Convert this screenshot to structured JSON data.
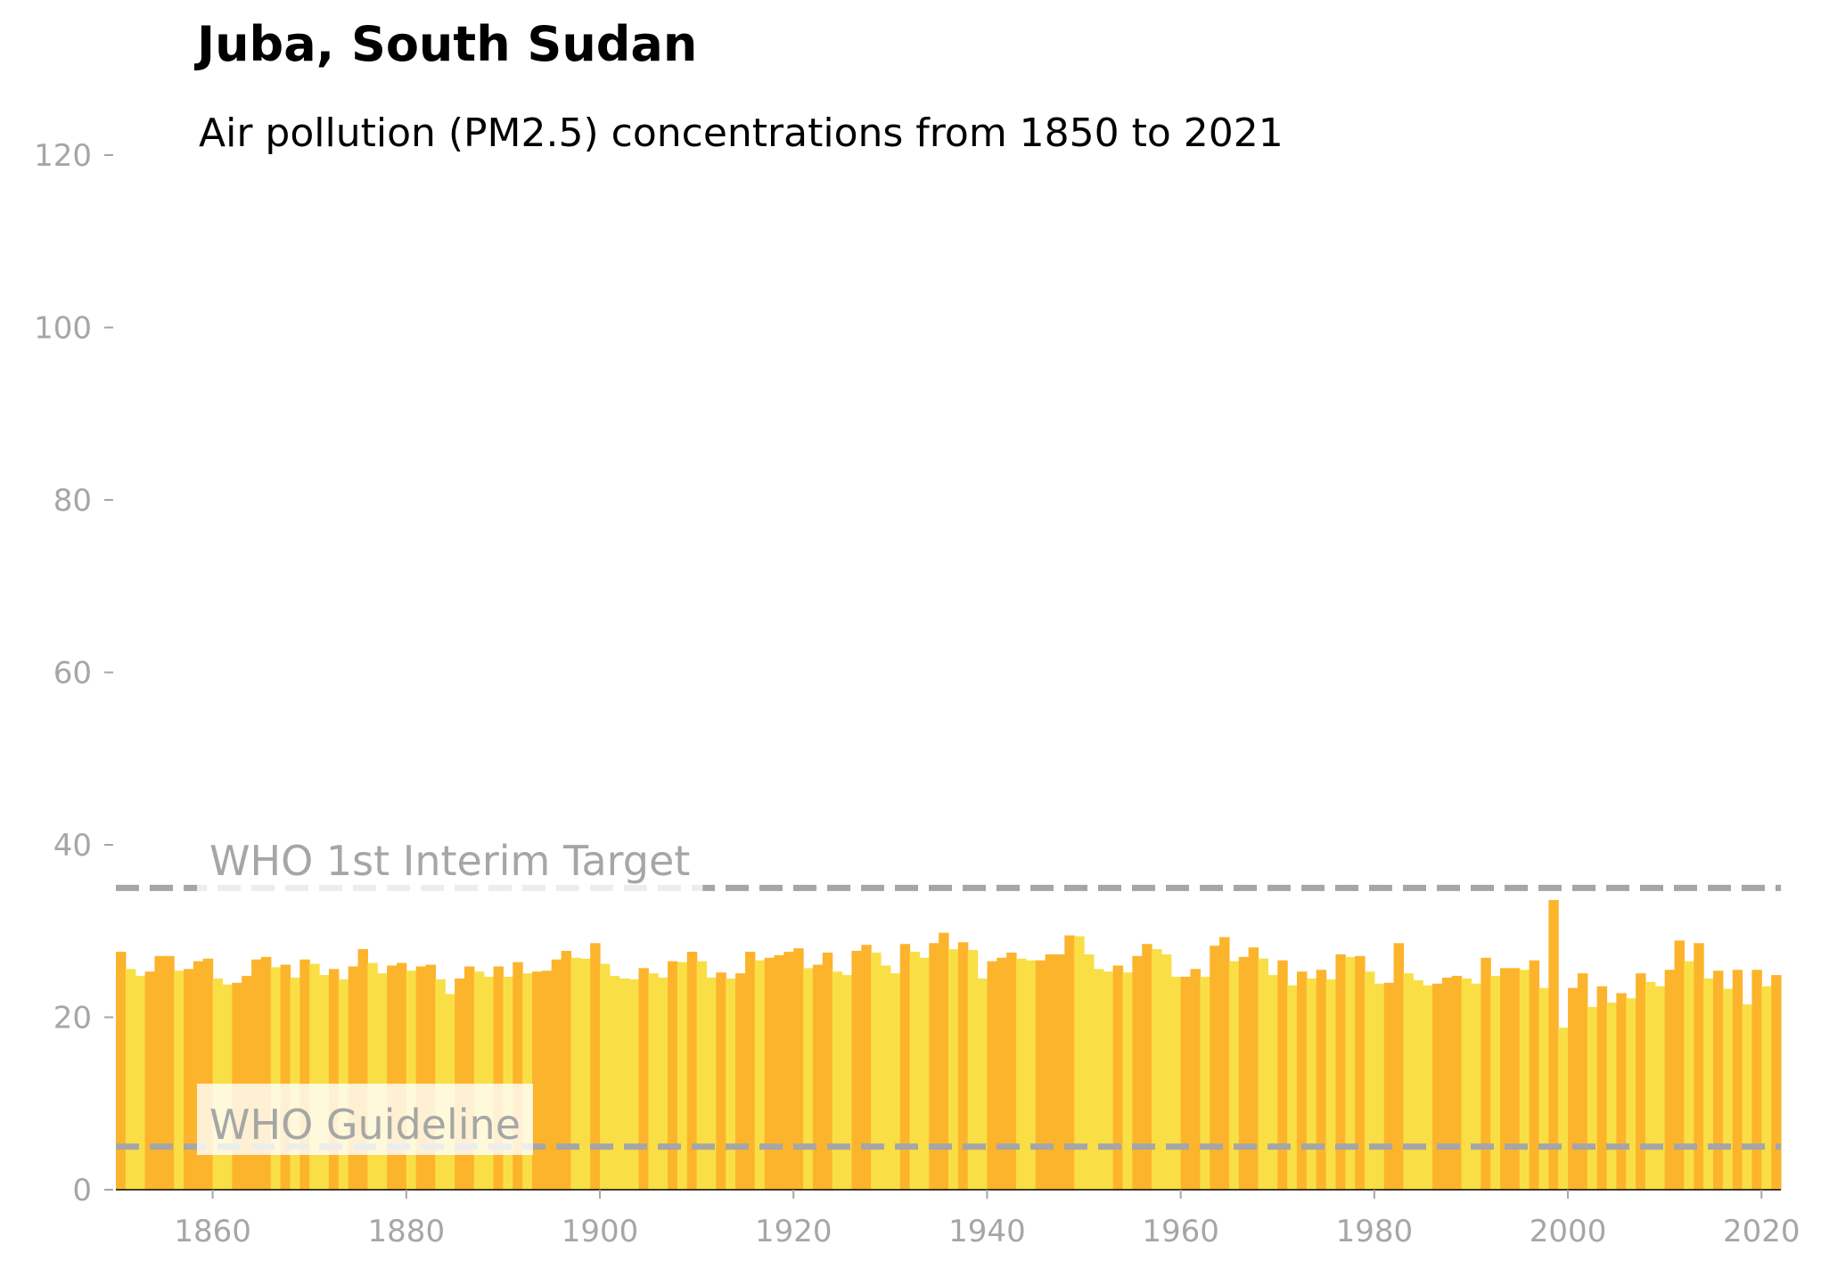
{
  "chart_data": {
    "type": "bar",
    "title": "Juba, South Sudan",
    "subtitle": "Air pollution (PM2.5) concentrations from 1850 to 2021",
    "xlabel": "",
    "ylabel": "",
    "xlim": [
      1850,
      2022
    ],
    "ylim": [
      0,
      120
    ],
    "x_ticks": [
      1860,
      1880,
      1900,
      1920,
      1940,
      1960,
      1980,
      2000,
      2020
    ],
    "y_ticks": [
      0,
      20,
      40,
      60,
      80,
      100,
      120
    ],
    "grid": false,
    "legend": "none",
    "colors": {
      "high": "#fcb42c",
      "low": "#f9df45",
      "reference_line": "#a6a6a6"
    },
    "reference_lines": [
      {
        "label": "WHO 1st Interim Target",
        "value": 35
      },
      {
        "label": "WHO Guideline",
        "value": 5
      }
    ],
    "years": [
      1850,
      1851,
      1852,
      1853,
      1854,
      1855,
      1856,
      1857,
      1858,
      1859,
      1860,
      1861,
      1862,
      1863,
      1864,
      1865,
      1866,
      1867,
      1868,
      1869,
      1870,
      1871,
      1872,
      1873,
      1874,
      1875,
      1876,
      1877,
      1878,
      1879,
      1880,
      1881,
      1882,
      1883,
      1884,
      1885,
      1886,
      1887,
      1888,
      1889,
      1890,
      1891,
      1892,
      1893,
      1894,
      1895,
      1896,
      1897,
      1898,
      1899,
      1900,
      1901,
      1902,
      1903,
      1904,
      1905,
      1906,
      1907,
      1908,
      1909,
      1910,
      1911,
      1912,
      1913,
      1914,
      1915,
      1916,
      1917,
      1918,
      1919,
      1920,
      1921,
      1922,
      1923,
      1924,
      1925,
      1926,
      1927,
      1928,
      1929,
      1930,
      1931,
      1932,
      1933,
      1934,
      1935,
      1936,
      1937,
      1938,
      1939,
      1940,
      1941,
      1942,
      1943,
      1944,
      1945,
      1946,
      1947,
      1948,
      1949,
      1950,
      1951,
      1952,
      1953,
      1954,
      1955,
      1956,
      1957,
      1958,
      1959,
      1960,
      1961,
      1962,
      1963,
      1964,
      1965,
      1966,
      1967,
      1968,
      1969,
      1970,
      1971,
      1972,
      1973,
      1974,
      1975,
      1976,
      1977,
      1978,
      1979,
      1980,
      1981,
      1982,
      1983,
      1984,
      1985,
      1986,
      1987,
      1988,
      1989,
      1990,
      1991,
      1992,
      1993,
      1994,
      1995,
      1996,
      1997,
      1998,
      1999,
      2000,
      2001,
      2002,
      2003,
      2004,
      2005,
      2006,
      2007,
      2008,
      2009,
      2010,
      2011,
      2012,
      2013,
      2014,
      2015,
      2016,
      2017,
      2018,
      2019,
      2020,
      2021
    ],
    "values": [
      27.6,
      25.6,
      24.8,
      25.3,
      27.1,
      27.1,
      25.4,
      25.6,
      26.5,
      26.8,
      24.5,
      23.8,
      24.0,
      24.8,
      26.7,
      27.0,
      25.8,
      26.1,
      24.6,
      26.7,
      26.2,
      24.9,
      25.6,
      24.4,
      25.9,
      27.9,
      26.3,
      25.1,
      26.0,
      26.3,
      25.4,
      25.9,
      26.1,
      24.4,
      22.7,
      24.5,
      25.9,
      25.3,
      24.7,
      25.9,
      24.7,
      26.4,
      25.1,
      25.3,
      25.4,
      26.7,
      27.7,
      26.9,
      26.8,
      28.6,
      26.2,
      24.8,
      24.5,
      24.4,
      25.7,
      25.1,
      24.6,
      26.5,
      26.4,
      27.6,
      26.5,
      24.6,
      25.2,
      24.5,
      25.1,
      27.6,
      26.6,
      26.9,
      27.2,
      27.6,
      28.0,
      25.7,
      26.1,
      27.5,
      25.3,
      24.9,
      27.7,
      28.4,
      27.5,
      26.0,
      25.1,
      28.5,
      27.6,
      26.9,
      28.6,
      29.8,
      27.9,
      28.7,
      27.8,
      24.5,
      26.5,
      26.9,
      27.5,
      26.8,
      26.6,
      26.6,
      27.3,
      27.3,
      29.5,
      29.4,
      27.3,
      25.6,
      25.3,
      26.0,
      25.2,
      27.1,
      28.5,
      27.9,
      27.3,
      24.7,
      24.7,
      25.6,
      24.7,
      28.3,
      29.3,
      26.5,
      27.0,
      28.1,
      26.8,
      24.9,
      26.6,
      23.7,
      25.3,
      24.5,
      25.5,
      24.4,
      27.3,
      27.0,
      27.1,
      25.3,
      23.9,
      24.0,
      28.6,
      25.1,
      24.3,
      23.7,
      23.9,
      24.6,
      24.8,
      24.5,
      23.9,
      26.9,
      24.8,
      25.7,
      25.7,
      25.5,
      26.6,
      23.4,
      33.6,
      18.8,
      23.4,
      25.1,
      21.2,
      23.6,
      21.7,
      22.8,
      22.2,
      25.1,
      24.1,
      23.6,
      25.5,
      28.9,
      26.5,
      28.6,
      24.5,
      25.4,
      23.3,
      25.5,
      21.5,
      25.5,
      23.6,
      24.9
    ]
  }
}
